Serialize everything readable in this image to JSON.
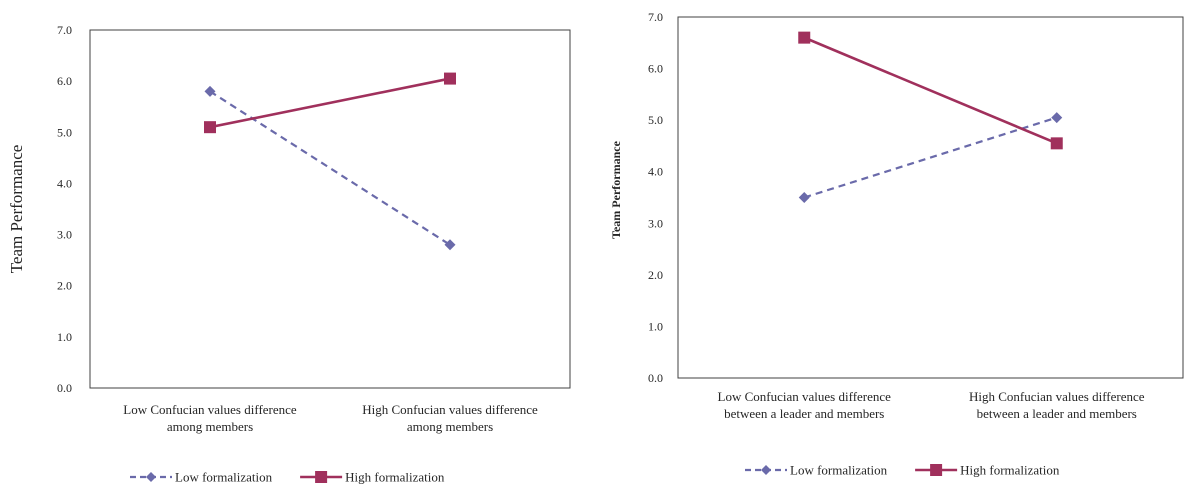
{
  "chart_data": [
    {
      "type": "line",
      "categories": [
        "Low Confucian values difference\namong members",
        "High Confucian values difference\namong members"
      ],
      "series": [
        {
          "name": "Low formalization",
          "values": [
            5.8,
            2.8
          ],
          "color": "#6a6aaa",
          "dashed": true,
          "marker": "diamond"
        },
        {
          "name": "High formalization",
          "values": [
            5.1,
            6.05
          ],
          "color": "#a0305c",
          "dashed": false,
          "marker": "square"
        }
      ],
      "ylabel": "Team Performance",
      "xlabel": "",
      "ylim": [
        0,
        7
      ],
      "yticks": [
        "0.0",
        "1.0",
        "2.0",
        "3.0",
        "4.0",
        "5.0",
        "6.0",
        "7.0"
      ],
      "grid": false,
      "legend": "bottom"
    },
    {
      "type": "line",
      "categories": [
        "Low Confucian values difference\nbetween a leader and members",
        "High  Confucian values difference\nbetween a leader and members"
      ],
      "series": [
        {
          "name": "Low formalization",
          "values": [
            3.5,
            5.05
          ],
          "color": "#6a6aaa",
          "dashed": true,
          "marker": "diamond"
        },
        {
          "name": "High formalization",
          "values": [
            6.6,
            4.55
          ],
          "color": "#a0305c",
          "dashed": false,
          "marker": "square"
        }
      ],
      "ylabel": "Team Performance",
      "xlabel": "",
      "ylim": [
        0,
        7
      ],
      "yticks": [
        "0.0",
        "1.0",
        "2.0",
        "3.0",
        "4.0",
        "5.0",
        "6.0",
        "7.0"
      ],
      "grid": false,
      "legend": "bottom"
    }
  ]
}
